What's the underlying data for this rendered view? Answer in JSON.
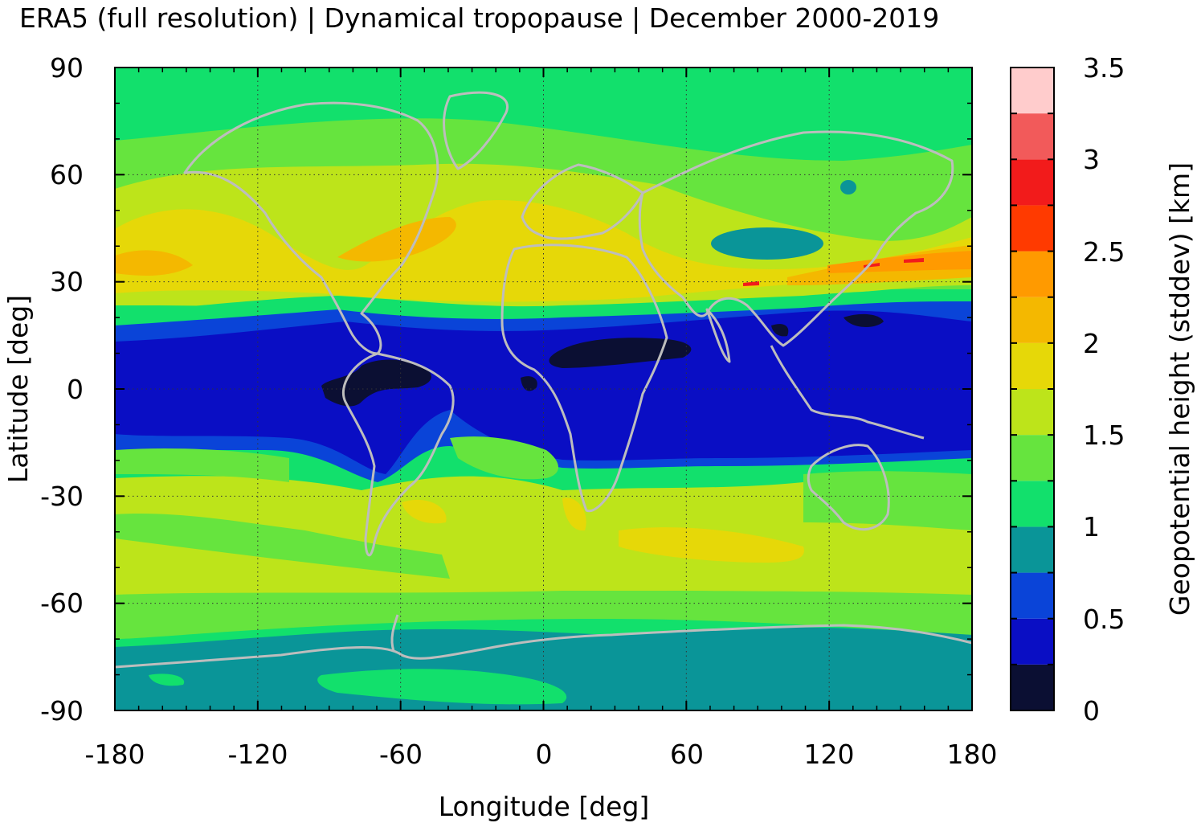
{
  "title": "ERA5 (full resolution) | Dynamical tropopause | December 2000-2019",
  "map": {
    "xlabel": "Longitude [deg]",
    "ylabel": "Latitude [deg]",
    "xlim": [
      -180,
      180
    ],
    "ylim": [
      -90,
      90
    ],
    "xticks": [
      "-180",
      "-120",
      "-60",
      "0",
      "60",
      "120",
      "180"
    ],
    "yticks": [
      "90",
      "60",
      "30",
      "0",
      "-30",
      "-60",
      "-90"
    ],
    "grid": true,
    "coastline_color": "#bdbdbd"
  },
  "colorbar": {
    "label": "Geopotential height (stddev) [km]",
    "min": 0,
    "max": 3.5,
    "step": 0.25,
    "ticks": [
      "0",
      "0.5",
      "1",
      "1.5",
      "2",
      "2.5",
      "3",
      "3.5"
    ],
    "colors": [
      "#0b0f33",
      "#0a0ec4",
      "#0a44d8",
      "#0a9598",
      "#12e06c",
      "#66e43e",
      "#bde41a",
      "#e6d808",
      "#f4b800",
      "#ff9a00",
      "#ff3a00",
      "#f21b1b",
      "#f25a5a",
      "#ffcccc"
    ]
  }
}
